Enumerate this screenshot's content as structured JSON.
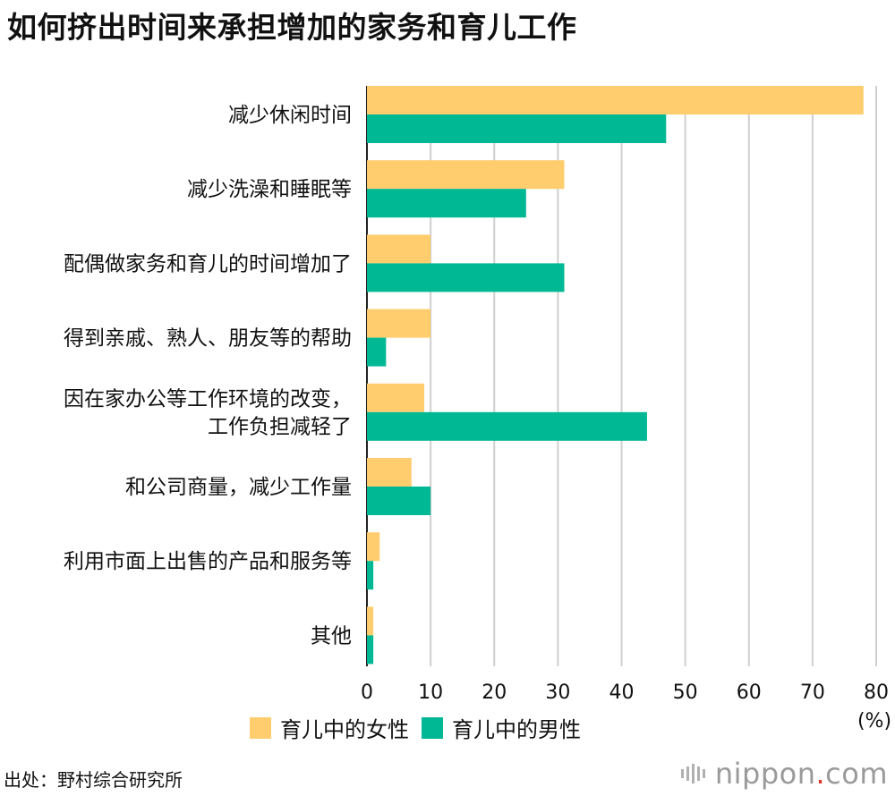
{
  "title": "如何挤出时间来承担增加的家务和育儿工作",
  "chart_data": {
    "type": "bar",
    "orientation": "horizontal",
    "title": "如何挤出时间来承担增加的家务和育儿工作",
    "categories": [
      [
        "减少休闲时间"
      ],
      [
        "减少洗澡和睡眠等"
      ],
      [
        "配偶做家务和育儿的时间增加了"
      ],
      [
        "得到亲戚、熟人、朋友等的帮助"
      ],
      [
        "因在家办公等工作环境的改变，",
        "工作负担减轻了"
      ],
      [
        "和公司商量，减少工作量"
      ],
      [
        "利用市面上出售的产品和服务等"
      ],
      [
        "其他"
      ]
    ],
    "series": [
      {
        "name": "育儿中的女性",
        "color": "#FFCC6E",
        "values": [
          78,
          31,
          10,
          10,
          9,
          7,
          2,
          1
        ]
      },
      {
        "name": "育儿中的男性",
        "color": "#00B894",
        "values": [
          47,
          25,
          31,
          3,
          44,
          10,
          1,
          1
        ]
      }
    ],
    "xlim": [
      0,
      80
    ],
    "xticks": [
      "0",
      "10",
      "20",
      "30",
      "40",
      "50",
      "60",
      "70",
      "80"
    ],
    "x_unit": "(%)",
    "grid": true,
    "legend_position": "bottom"
  },
  "source": "出处：野村综合研究所",
  "brand": {
    "name": "nippon",
    "dot": ".",
    "suffix": "com"
  }
}
